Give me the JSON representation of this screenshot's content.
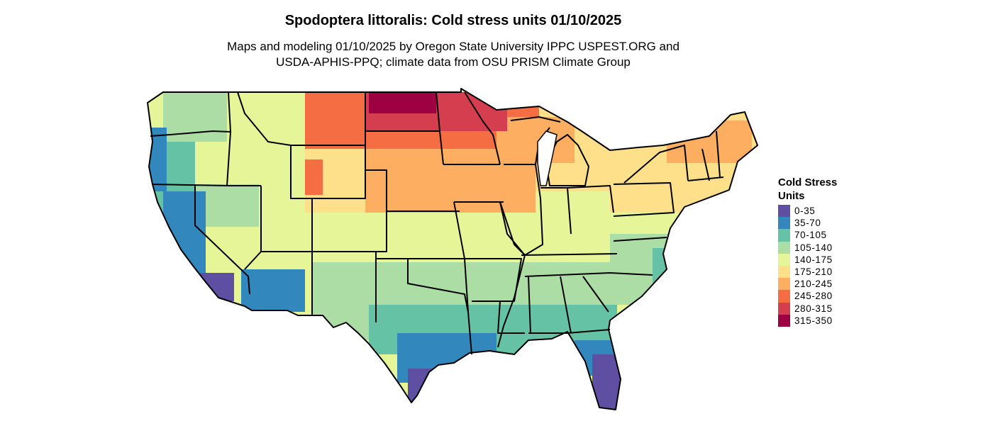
{
  "title": "Spodoptera littoralis: Cold stress units 01/10/2025",
  "subtitle_lines": [
    "Maps and modeling 01/10/2025 by Oregon State University IPPC USPEST.ORG and",
    "USDA-APHIS-PPQ; climate data from OSU PRISM Climate Group"
  ],
  "legend": {
    "title_lines": [
      "Cold Stress",
      "Units"
    ],
    "items": [
      {
        "label": "0-35",
        "color": "#5e4fa2"
      },
      {
        "label": "35-70",
        "color": "#3288bd"
      },
      {
        "label": "70-105",
        "color": "#66c2a5"
      },
      {
        "label": "105-140",
        "color": "#abdda4"
      },
      {
        "label": "140-175",
        "color": "#e6f598"
      },
      {
        "label": "175-210",
        "color": "#fee08b"
      },
      {
        "label": "210-245",
        "color": "#fdae61"
      },
      {
        "label": "245-280",
        "color": "#f46d43"
      },
      {
        "label": "280-315",
        "color": "#d53e4f"
      },
      {
        "label": "315-350",
        "color": "#9e0142"
      }
    ]
  }
}
